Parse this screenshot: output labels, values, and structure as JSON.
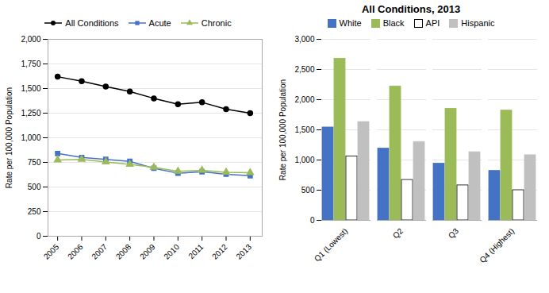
{
  "chart_data": [
    {
      "type": "line",
      "x": [
        2005,
        2006,
        2007,
        2008,
        2009,
        2010,
        2011,
        2012,
        2013
      ],
      "xlim": [
        2004.6,
        2013.5
      ],
      "xticks": [
        2005,
        2006,
        2007,
        2008,
        2009,
        2010,
        2011,
        2012,
        2013
      ],
      "ylabel": "Rate per 100,000 Population",
      "ylim": [
        0,
        2000
      ],
      "yticks": [
        0,
        250,
        500,
        750,
        {
          "value": 1000,
          "label": "1,000"
        },
        {
          "value": 1250,
          "label": "1,250"
        },
        {
          "value": 1500,
          "label": "1,500"
        },
        {
          "value": 1750,
          "label": "1,750"
        },
        {
          "value": 2000,
          "label": "2,000"
        }
      ],
      "grid": true,
      "legend": "top",
      "series": [
        {
          "name": "All Conditions",
          "color": "#000000",
          "marker": "circle",
          "values": [
            1620,
            1575,
            1520,
            1470,
            1400,
            1340,
            1360,
            1290,
            1250
          ]
        },
        {
          "name": "Acute",
          "color": "#4472c4",
          "marker": "square",
          "values": [
            840,
            800,
            780,
            760,
            690,
            640,
            655,
            630,
            615
          ]
        },
        {
          "name": "Chronic",
          "color": "#9bbb59",
          "marker": "triangle",
          "values": [
            775,
            780,
            755,
            730,
            700,
            660,
            670,
            650,
            645
          ]
        }
      ]
    },
    {
      "type": "bar",
      "title": "All Conditions, 2013",
      "categories": [
        "Q1 (Lowest)",
        "Q2",
        "Q3",
        "Q4 (Highest)"
      ],
      "ylabel": "Rate per 100,000 Population",
      "ylim": [
        0,
        3000
      ],
      "yticks": [
        0,
        500,
        {
          "value": 1000,
          "label": "1,000"
        },
        {
          "value": 1500,
          "label": "1,500"
        },
        {
          "value": 2000,
          "label": "2,000"
        },
        {
          "value": 2500,
          "label": "2,500"
        },
        {
          "value": 3000,
          "label": "3,000"
        }
      ],
      "grid": true,
      "legend": "top",
      "series": [
        {
          "name": "White",
          "color": "#4472c4",
          "values": [
            1540,
            1190,
            940,
            820
          ]
        },
        {
          "name": "Black",
          "color": "#9bbb59",
          "values": [
            2680,
            2220,
            1850,
            1820
          ]
        },
        {
          "name": "API",
          "color": "#ffffff",
          "values": [
            1060,
            670,
            580,
            500
          ]
        },
        {
          "name": "Hispanic",
          "color": "#c0c0c0",
          "values": [
            1630,
            1300,
            1130,
            1080
          ]
        }
      ]
    }
  ]
}
